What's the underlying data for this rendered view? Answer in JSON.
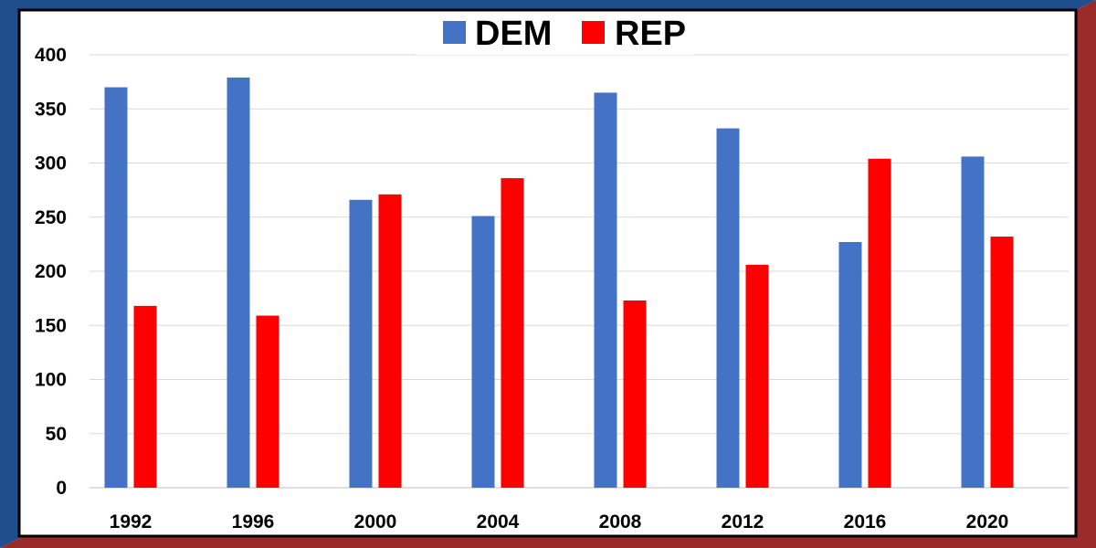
{
  "chart_data": {
    "type": "bar",
    "title": "",
    "xlabel": "",
    "ylabel": "",
    "categories": [
      "1992",
      "1996",
      "2000",
      "2004",
      "2008",
      "2012",
      "2016",
      "2020"
    ],
    "series": [
      {
        "name": "DEM",
        "color": "#4472c4",
        "values": [
          370,
          379,
          266,
          251,
          365,
          332,
          227,
          306
        ]
      },
      {
        "name": "REP",
        "color": "#ff0000",
        "values": [
          168,
          159,
          271,
          286,
          173,
          206,
          304,
          232
        ]
      }
    ],
    "ylim": [
      0,
      400
    ],
    "yticks": [
      0,
      50,
      100,
      150,
      200,
      250,
      300,
      350,
      400
    ],
    "grid": true,
    "legend_position": "top-center"
  },
  "frame_colors": {
    "left_band": "#1f4e8c",
    "right_band": "#9b2a2a",
    "border": "#000000"
  }
}
